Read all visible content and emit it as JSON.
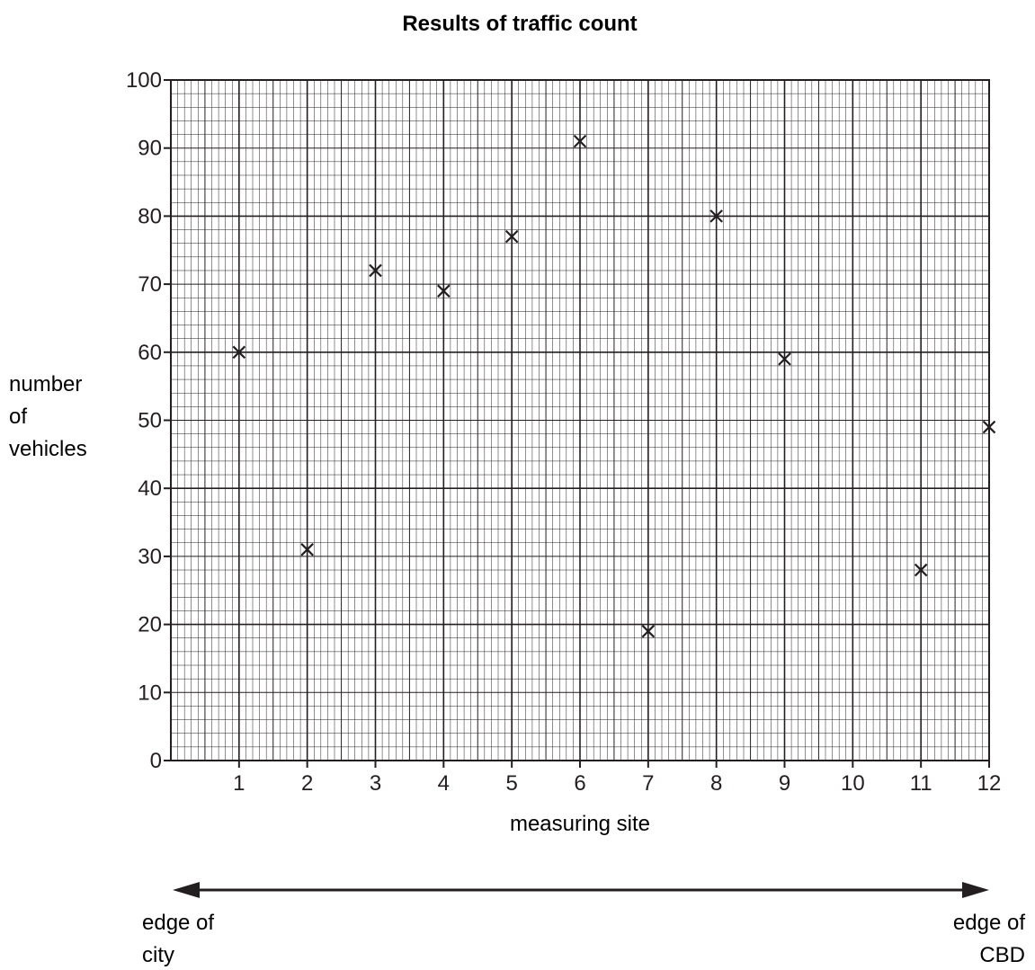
{
  "chart_data": {
    "type": "scatter",
    "title": "Results of traffic count",
    "xlabel": "measuring site",
    "ylabel": [
      "number",
      "of",
      "vehicles"
    ],
    "x_ticks": [
      "1",
      "2",
      "3",
      "4",
      "5",
      "6",
      "7",
      "8",
      "9",
      "10",
      "11",
      "12"
    ],
    "y_ticks": [
      "0",
      "10",
      "20",
      "30",
      "40",
      "50",
      "60",
      "70",
      "80",
      "90",
      "100"
    ],
    "xlim": [
      0,
      12
    ],
    "ylim": [
      0,
      100
    ],
    "grid": "on",
    "marker": "x",
    "points": [
      {
        "x": 1,
        "y": 60
      },
      {
        "x": 2,
        "y": 31
      },
      {
        "x": 3,
        "y": 72
      },
      {
        "x": 4,
        "y": 69
      },
      {
        "x": 5,
        "y": 77
      },
      {
        "x": 6,
        "y": 91
      },
      {
        "x": 7,
        "y": 19
      },
      {
        "x": 8,
        "y": 80
      },
      {
        "x": 9,
        "y": 59
      },
      {
        "x": 11,
        "y": 28
      },
      {
        "x": 12,
        "y": 49
      }
    ],
    "direction_arrow": {
      "left_label": [
        "edge of",
        "city"
      ],
      "right_label": [
        "edge of",
        "CBD"
      ]
    }
  },
  "colors": {
    "ink": "#231f20",
    "background": "#ffffff"
  }
}
